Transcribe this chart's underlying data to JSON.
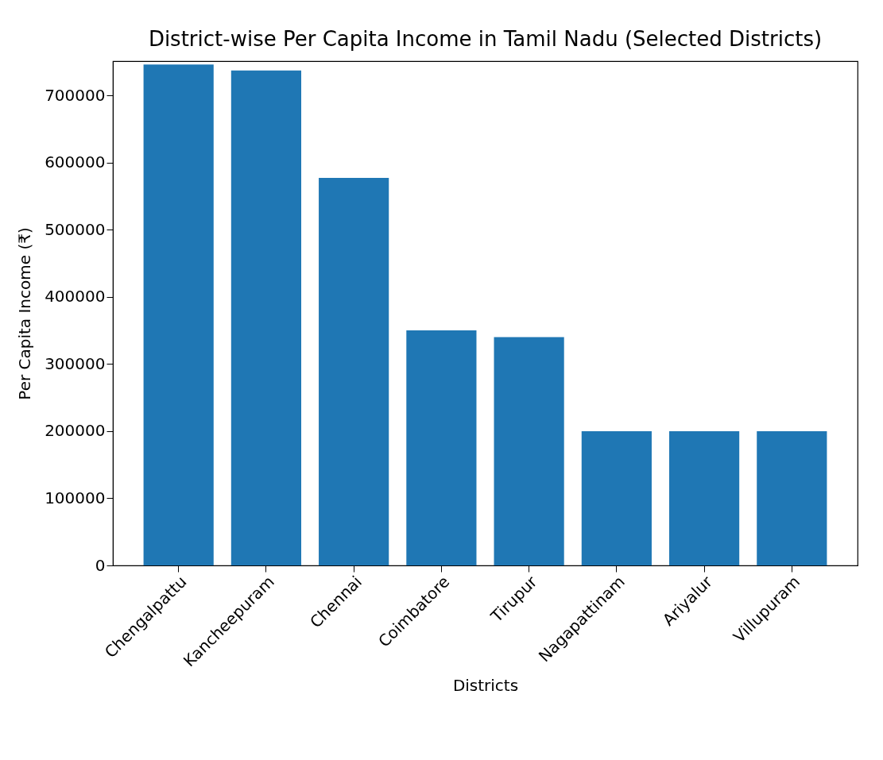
{
  "chart_data": {
    "type": "bar",
    "title": "District-wise Per Capita Income in Tamil Nadu (Selected Districts)",
    "xlabel": "Districts",
    "ylabel": "Per Capita Income (₹)",
    "categories": [
      "Chengalpattu",
      "Kancheepuram",
      "Chennai",
      "Coimbatore",
      "Tirupur",
      "Nagapattinam",
      "Ariyalur",
      "Villupuram"
    ],
    "values": [
      746000,
      737000,
      577000,
      350000,
      340000,
      200000,
      200000,
      200000
    ],
    "color": "#1f77b4",
    "ylim": [
      0,
      751000
    ],
    "yticks": [
      0,
      100000,
      200000,
      300000,
      400000,
      500000,
      600000,
      700000
    ],
    "grid": false
  }
}
